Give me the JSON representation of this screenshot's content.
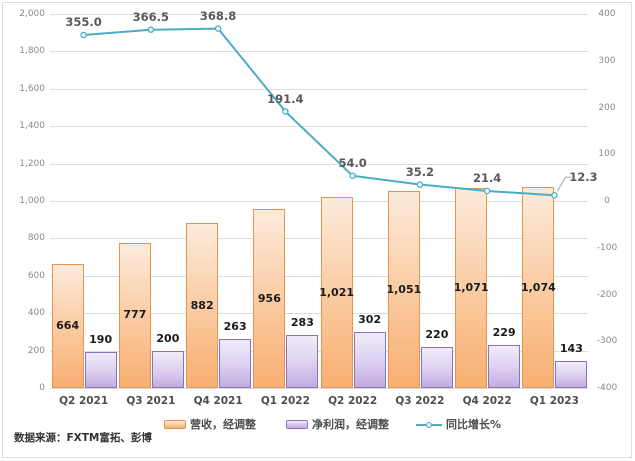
{
  "chart_data": {
    "type": "combo",
    "title": "",
    "categories": [
      "Q2 2021",
      "Q3 2021",
      "Q4 2021",
      "Q1 2022",
      "Q2 2022",
      "Q3 2022",
      "Q4 2022",
      "Q1 2023"
    ],
    "series": [
      {
        "name": "营收，经调整",
        "type": "bar",
        "axis": "left",
        "border_color": "#E59550",
        "fill_top": "#FCEBDC",
        "fill_bottom": "#F8AF72",
        "values": [
          664,
          777,
          882,
          956,
          1021,
          1051,
          1071,
          1074
        ],
        "labels": [
          "664",
          "777",
          "882",
          "956",
          "1,021",
          "1,051",
          "1,071",
          "1,074"
        ]
      },
      {
        "name": "净利润，经调整",
        "type": "bar",
        "axis": "left",
        "border_color": "#8C72BC",
        "fill_top": "#F1ECF9",
        "fill_bottom": "#C2ABE0",
        "values": [
          190,
          200,
          263,
          283,
          302,
          220,
          229,
          143
        ],
        "labels": [
          "190",
          "200",
          "263",
          "283",
          "302",
          "220",
          "229",
          "143"
        ]
      },
      {
        "name": "同比增长%",
        "type": "line",
        "axis": "right",
        "color": "#4BACC6",
        "values": [
          355.0,
          366.5,
          368.8,
          191.4,
          54.0,
          35.2,
          21.4,
          12.3
        ],
        "labels": [
          "355.0",
          "366.5",
          "368.8",
          "191.4",
          "54.0",
          "35.2",
          "21.4",
          "12.3"
        ]
      }
    ],
    "left_axis": {
      "min": 0,
      "max": 2000,
      "step": 200,
      "ticks": [
        "0",
        "200",
        "400",
        "600",
        "800",
        "1,000",
        "1,200",
        "1,400",
        "1,600",
        "1,800",
        "2,000"
      ]
    },
    "right_axis": {
      "min": -400,
      "max": 400,
      "step": 100,
      "ticks": [
        "-400",
        "-300",
        "-200",
        "-100",
        "0",
        "100",
        "200",
        "300",
        "400"
      ]
    },
    "grid": "horizontal-major-left-axis",
    "legend_position": "bottom"
  },
  "footer": {
    "source_note": "数据来源：FXTM富拓、彭博"
  },
  "colors": {
    "gridline": "#DCDCDC",
    "tick_text": "#8A8A8A",
    "bar_label": "#1A1A1A",
    "line_label": "#595959",
    "category_text": "#4D4D4D",
    "frame_border": "#D6DEE6",
    "line": "#4BACC6",
    "leader_line": "#A6A6A6"
  }
}
